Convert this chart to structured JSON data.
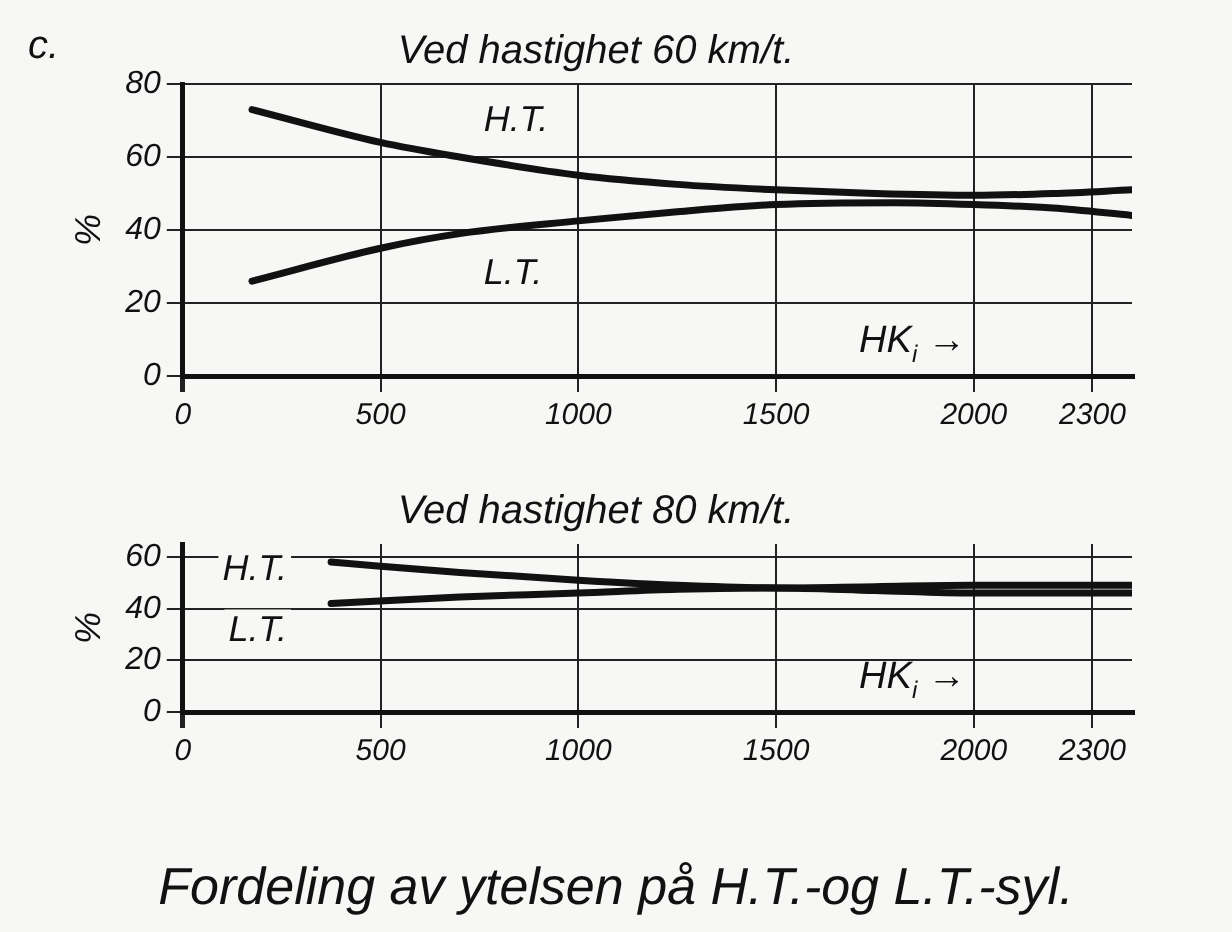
{
  "chart_data": [
    {
      "type": "line",
      "title": "Ved hastighet 60 km/t.",
      "xlabel": "HK$_{i}$ →",
      "ylabel": "%",
      "annotations": [
        "c."
      ],
      "xlim": [
        0,
        2400
      ],
      "xticks": [
        0,
        500,
        1000,
        1500,
        2000,
        2300
      ],
      "ylim": [
        0,
        80
      ],
      "yticks": [
        0,
        20,
        40,
        60,
        80
      ],
      "grid": true,
      "legend": false,
      "marker": "none",
      "line_style": "solid",
      "series": [
        {
          "name": "H.T.",
          "color": "#111111",
          "x": [
            175,
            500,
            700,
            1000,
            1250,
            1500,
            1750,
            2000,
            2200,
            2400
          ],
          "values": [
            73,
            64,
            60,
            55,
            52.5,
            51,
            50,
            49.5,
            50,
            51
          ]
        },
        {
          "name": "L.T.",
          "color": "#111111",
          "x": [
            175,
            500,
            700,
            1000,
            1250,
            1500,
            1800,
            2000,
            2200,
            2400
          ],
          "values": [
            26,
            35,
            39,
            42.5,
            45,
            47,
            47.5,
            47,
            46,
            44
          ]
        }
      ]
    },
    {
      "type": "line",
      "title": "Ved hastighet 80 km/t.",
      "xlabel": "HK$_{i}$ →",
      "ylabel": "%",
      "annotations": [
        "Fordeling av ytelsen på H.T.-og L.T.-syl."
      ],
      "xlim": [
        0,
        2400
      ],
      "xticks": [
        0,
        500,
        1000,
        1500,
        2000,
        2300
      ],
      "ylim": [
        0,
        65
      ],
      "yticks": [
        0,
        20,
        40,
        60
      ],
      "grid": true,
      "legend": false,
      "marker": "none",
      "line_style": "solid",
      "series": [
        {
          "name": "H.T.",
          "color": "#111111",
          "x": [
            375,
            700,
            1000,
            1250,
            1500,
            1750,
            2000,
            2400
          ],
          "values": [
            58,
            54,
            51,
            49,
            48,
            48.5,
            49,
            49
          ]
        },
        {
          "name": "L.T.",
          "color": "#111111",
          "x": [
            375,
            700,
            1000,
            1250,
            1500,
            1750,
            2000,
            2400
          ],
          "values": [
            42,
            44.5,
            46,
            47.5,
            48,
            47,
            46,
            46
          ]
        }
      ]
    }
  ]
}
